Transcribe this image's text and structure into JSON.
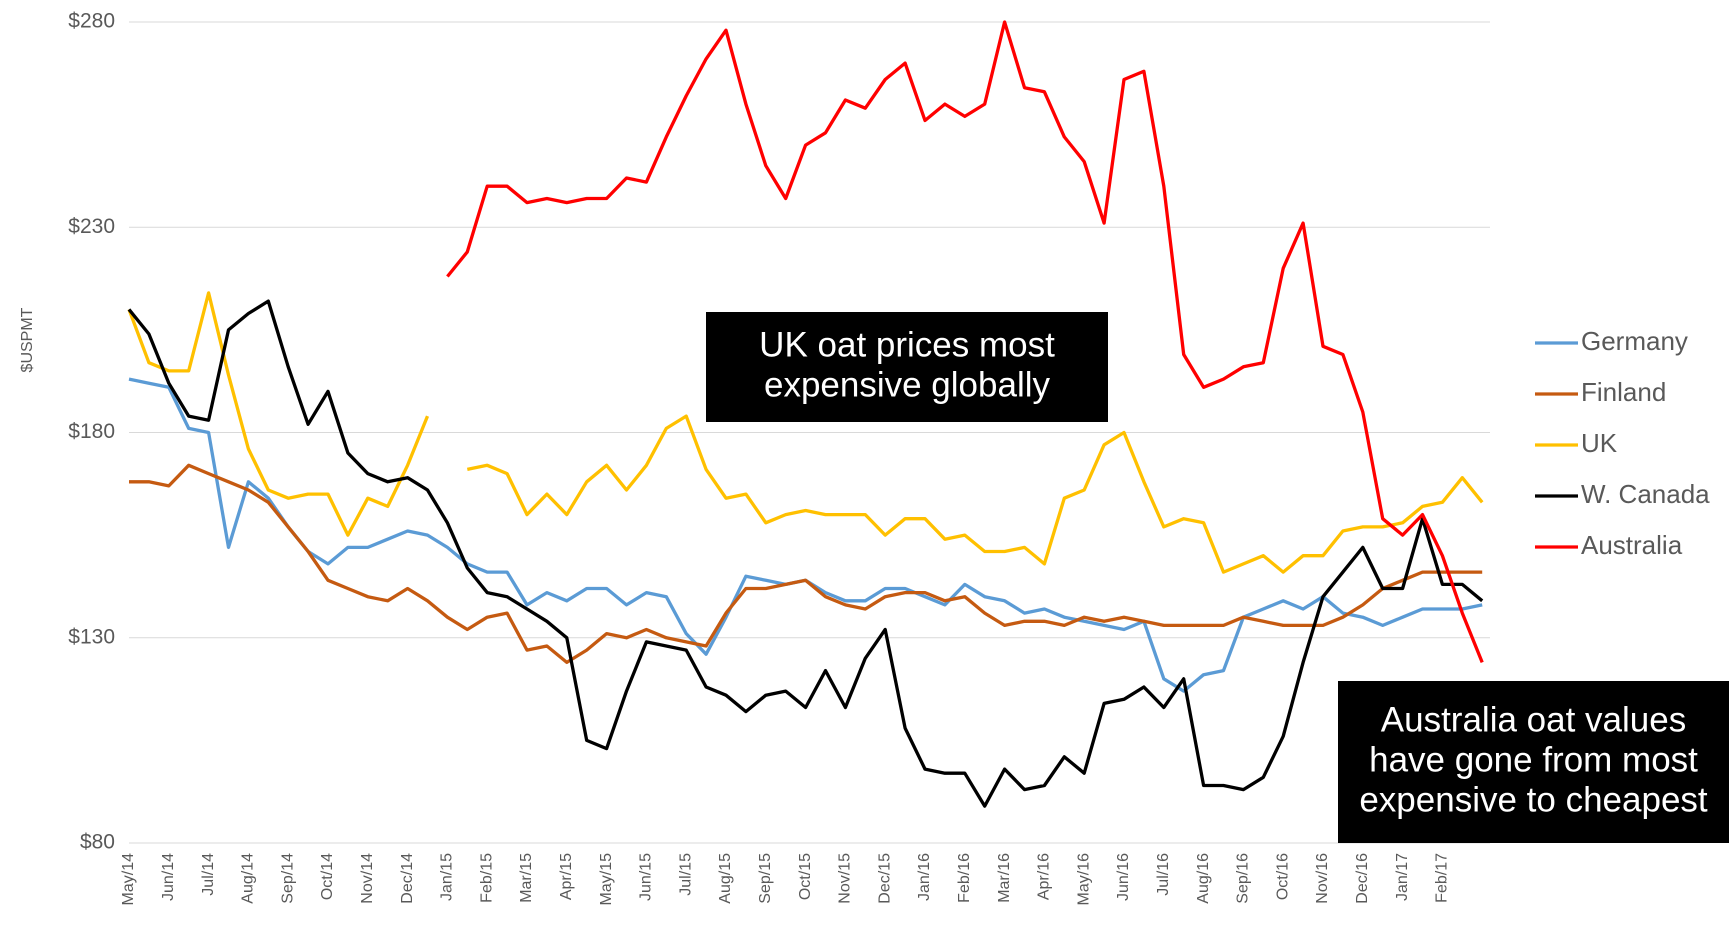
{
  "chart_data": {
    "type": "line",
    "y_label": "$USPMT",
    "categories": [
      "May/14",
      null,
      "Jun/14",
      null,
      "Jul/14",
      null,
      "Aug/14",
      null,
      "Sep/14",
      null,
      "Oct/14",
      null,
      "Nov/14",
      null,
      "Dec/14",
      null,
      "Jan/15",
      null,
      "Feb/15",
      null,
      "Mar/15",
      null,
      "Apr/15",
      null,
      "May/15",
      null,
      "Jun/15",
      null,
      "Jul/15",
      null,
      "Aug/15",
      null,
      "Sep/15",
      null,
      "Oct/15",
      null,
      "Nov/15",
      null,
      "Dec/15",
      null,
      "Jan/16",
      null,
      "Feb/16",
      null,
      "Mar/16",
      null,
      "Apr/16",
      null,
      "May/16",
      null,
      "Jun/16",
      null,
      "Jul/16",
      null,
      "Aug/16",
      null,
      "Sep/16",
      null,
      "Oct/16",
      null,
      "Nov/16",
      null,
      "Dec/16",
      null,
      "Jan/17",
      null,
      "Feb/17",
      null,
      null
    ],
    "ylim": [
      80,
      280
    ],
    "yticks": [
      {
        "value": 80,
        "label": "$80"
      },
      {
        "value": 130,
        "label": "$130"
      },
      {
        "value": 180,
        "label": "$180"
      },
      {
        "value": 230,
        "label": "$230"
      },
      {
        "value": 280,
        "label": "$280"
      }
    ],
    "grid": true,
    "legend": "right",
    "series": [
      {
        "name": "Germany",
        "color": "#5b9bd5",
        "values": [
          193,
          192,
          191,
          181,
          180,
          152,
          168,
          164,
          157,
          151,
          148,
          152,
          152,
          154,
          156,
          155,
          152,
          148,
          146,
          146,
          138,
          141,
          139,
          142,
          142,
          138,
          141,
          140,
          131,
          126,
          135,
          145,
          144,
          143,
          144,
          141,
          139,
          139,
          142,
          142,
          140,
          138,
          143,
          140,
          139,
          136,
          137,
          135,
          134,
          133,
          132,
          134,
          120,
          117,
          121,
          122,
          135,
          137,
          139,
          137,
          140,
          136,
          135,
          133,
          135,
          137,
          137,
          137,
          138
        ]
      },
      {
        "name": "Finland",
        "color": "#c55a11",
        "values": [
          168,
          168,
          167,
          172,
          170,
          168,
          166,
          163,
          157,
          151,
          144,
          142,
          140,
          139,
          142,
          139,
          135,
          132,
          135,
          136,
          127,
          128,
          124,
          127,
          131,
          130,
          132,
          130,
          129,
          128,
          136,
          142,
          142,
          143,
          144,
          140,
          138,
          137,
          140,
          141,
          141,
          139,
          140,
          136,
          133,
          134,
          134,
          133,
          135,
          134,
          135,
          134,
          133,
          133,
          133,
          133,
          135,
          134,
          133,
          133,
          133,
          135,
          138,
          142,
          144,
          146,
          146,
          146,
          146
        ]
      },
      {
        "name": "UK",
        "color": "#ffc000",
        "values": [
          210,
          197,
          195,
          195,
          214,
          194,
          176,
          166,
          164,
          165,
          165,
          155,
          164,
          162,
          172,
          184,
          null,
          171,
          172,
          170,
          160,
          165,
          160,
          168,
          172,
          166,
          172,
          181,
          184,
          171,
          164,
          165,
          158,
          160,
          161,
          160,
          160,
          160,
          155,
          159,
          159,
          154,
          155,
          151,
          151,
          152,
          148,
          164,
          166,
          177,
          180,
          168,
          157,
          159,
          158,
          146,
          148,
          150,
          146,
          150,
          150,
          156,
          157,
          157,
          158,
          162,
          163,
          169,
          163
        ]
      },
      {
        "name": "W. Canada",
        "color": "#000000",
        "values": [
          210,
          204,
          192,
          184,
          183,
          205,
          209,
          212,
          196,
          182,
          190,
          175,
          170,
          168,
          169,
          166,
          158,
          147,
          141,
          140,
          137,
          134,
          130,
          105,
          103,
          117,
          129,
          128,
          127,
          118,
          116,
          112,
          116,
          117,
          113,
          122,
          113,
          125,
          132,
          108,
          98,
          97,
          97,
          89,
          98,
          93,
          94,
          101,
          97,
          114,
          115,
          118,
          113,
          120,
          94,
          94,
          93,
          96,
          106,
          124,
          140,
          146,
          152,
          142,
          142,
          159,
          143,
          143,
          139
        ]
      },
      {
        "name": "Australia",
        "color": "#ff0000",
        "values": [
          null,
          null,
          null,
          null,
          null,
          null,
          null,
          null,
          null,
          null,
          null,
          null,
          null,
          null,
          null,
          null,
          218,
          224,
          240,
          240,
          236,
          237,
          236,
          237,
          237,
          242,
          241,
          252,
          262,
          271,
          278,
          260,
          245,
          237,
          250,
          253,
          261,
          259,
          266,
          270,
          256,
          260,
          257,
          260,
          280,
          264,
          263,
          252,
          246,
          231,
          266,
          268,
          240,
          199,
          191,
          193,
          196,
          197,
          220,
          231,
          201,
          199,
          185,
          159,
          155,
          160,
          150,
          136,
          124
        ]
      }
    ],
    "annotations": [
      {
        "lines": [
          "UK oat prices most",
          "expensive globally"
        ]
      },
      {
        "lines": [
          "Australia oat values",
          "have gone from most",
          "expensive to cheapest"
        ]
      }
    ]
  }
}
